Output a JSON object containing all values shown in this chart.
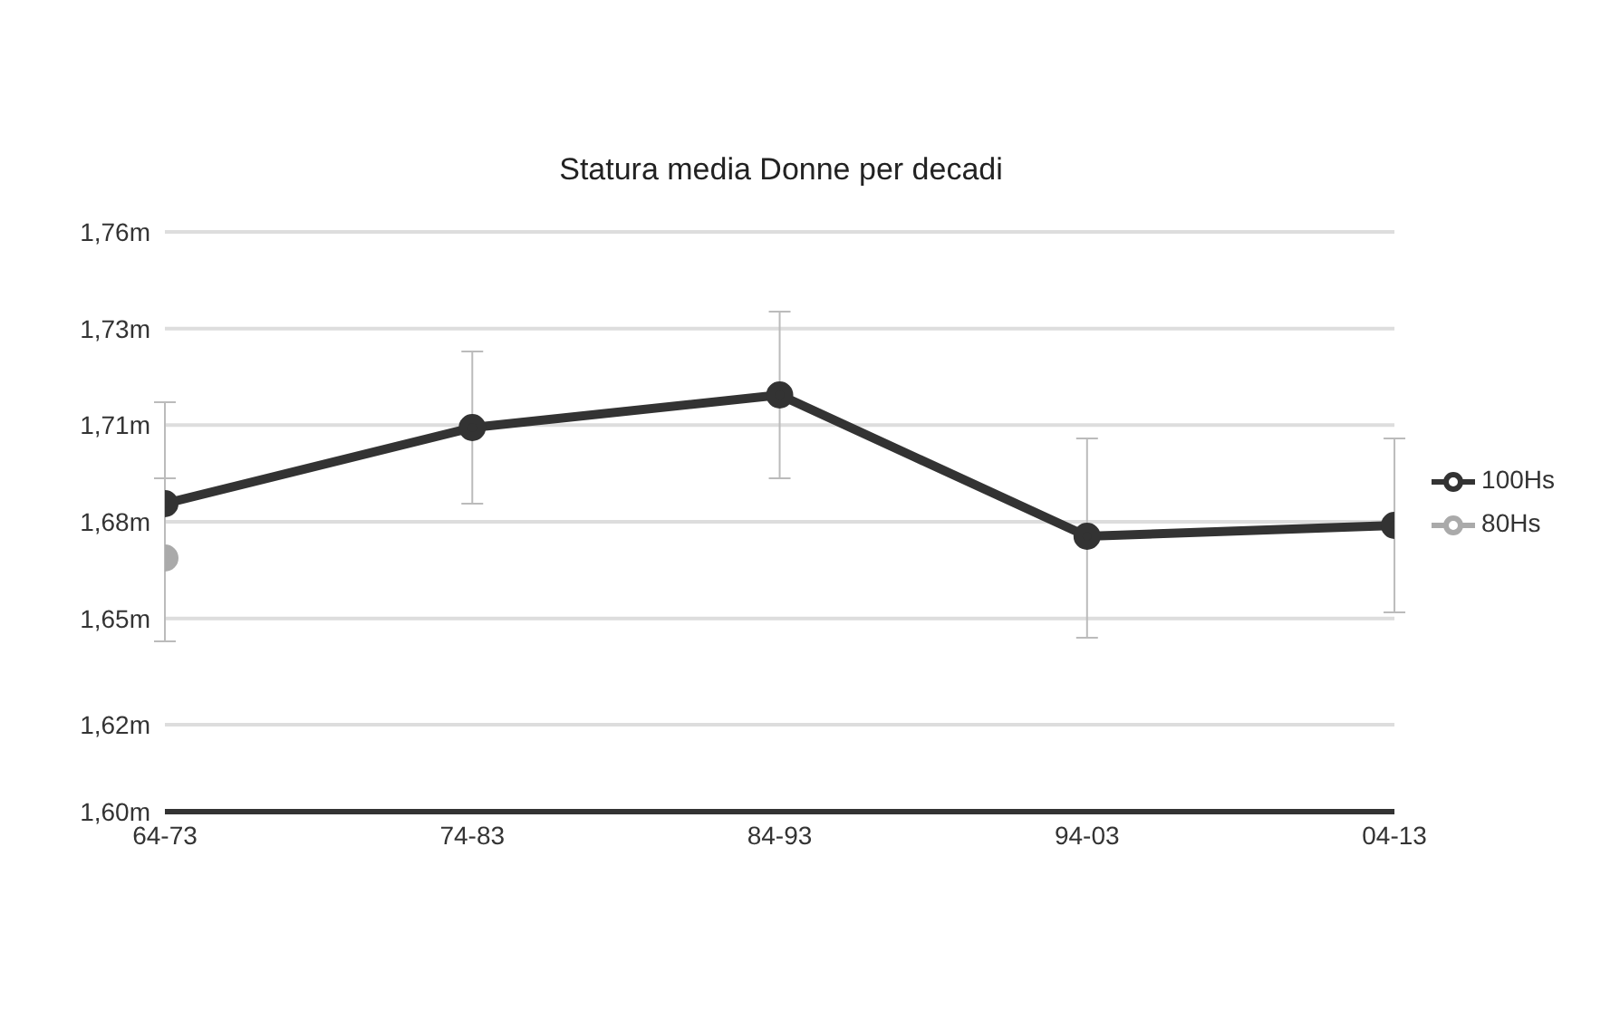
{
  "chart_data": {
    "type": "line",
    "title": "Statura media Donne per decadi",
    "categories": [
      "64-73",
      "74-83",
      "84-93",
      "94-03",
      "04-13"
    ],
    "series": [
      {
        "name": "100Hs",
        "color": "#333333",
        "values": [
          1.685,
          1.706,
          1.715,
          1.676,
          1.679
        ],
        "errors": [
          [
            1.647,
            1.692
          ],
          [
            1.685,
            1.727
          ],
          [
            1.692,
            1.738
          ],
          [
            1.648,
            1.703
          ],
          [
            1.655,
            1.703
          ]
        ]
      },
      {
        "name": "80Hs",
        "color": "#aaaaaa",
        "values": [
          1.67,
          null,
          null,
          null,
          null
        ],
        "errors": [
          [
            1.647,
            1.713
          ],
          null,
          null,
          null,
          null
        ]
      }
    ],
    "ylim": [
      1.6,
      1.76
    ],
    "yticks": [
      {
        "value": 1.6,
        "label": "1,60m"
      },
      {
        "value": 1.624,
        "label": "1,62m"
      },
      {
        "value": 1.6533,
        "label": "1,65m"
      },
      {
        "value": 1.68,
        "label": "1,68m"
      },
      {
        "value": 1.7067,
        "label": "1,71m"
      },
      {
        "value": 1.7333,
        "label": "1,73m"
      },
      {
        "value": 1.76,
        "label": "1,76m"
      }
    ],
    "grid": "y",
    "legend": "right",
    "marker": "circle"
  }
}
